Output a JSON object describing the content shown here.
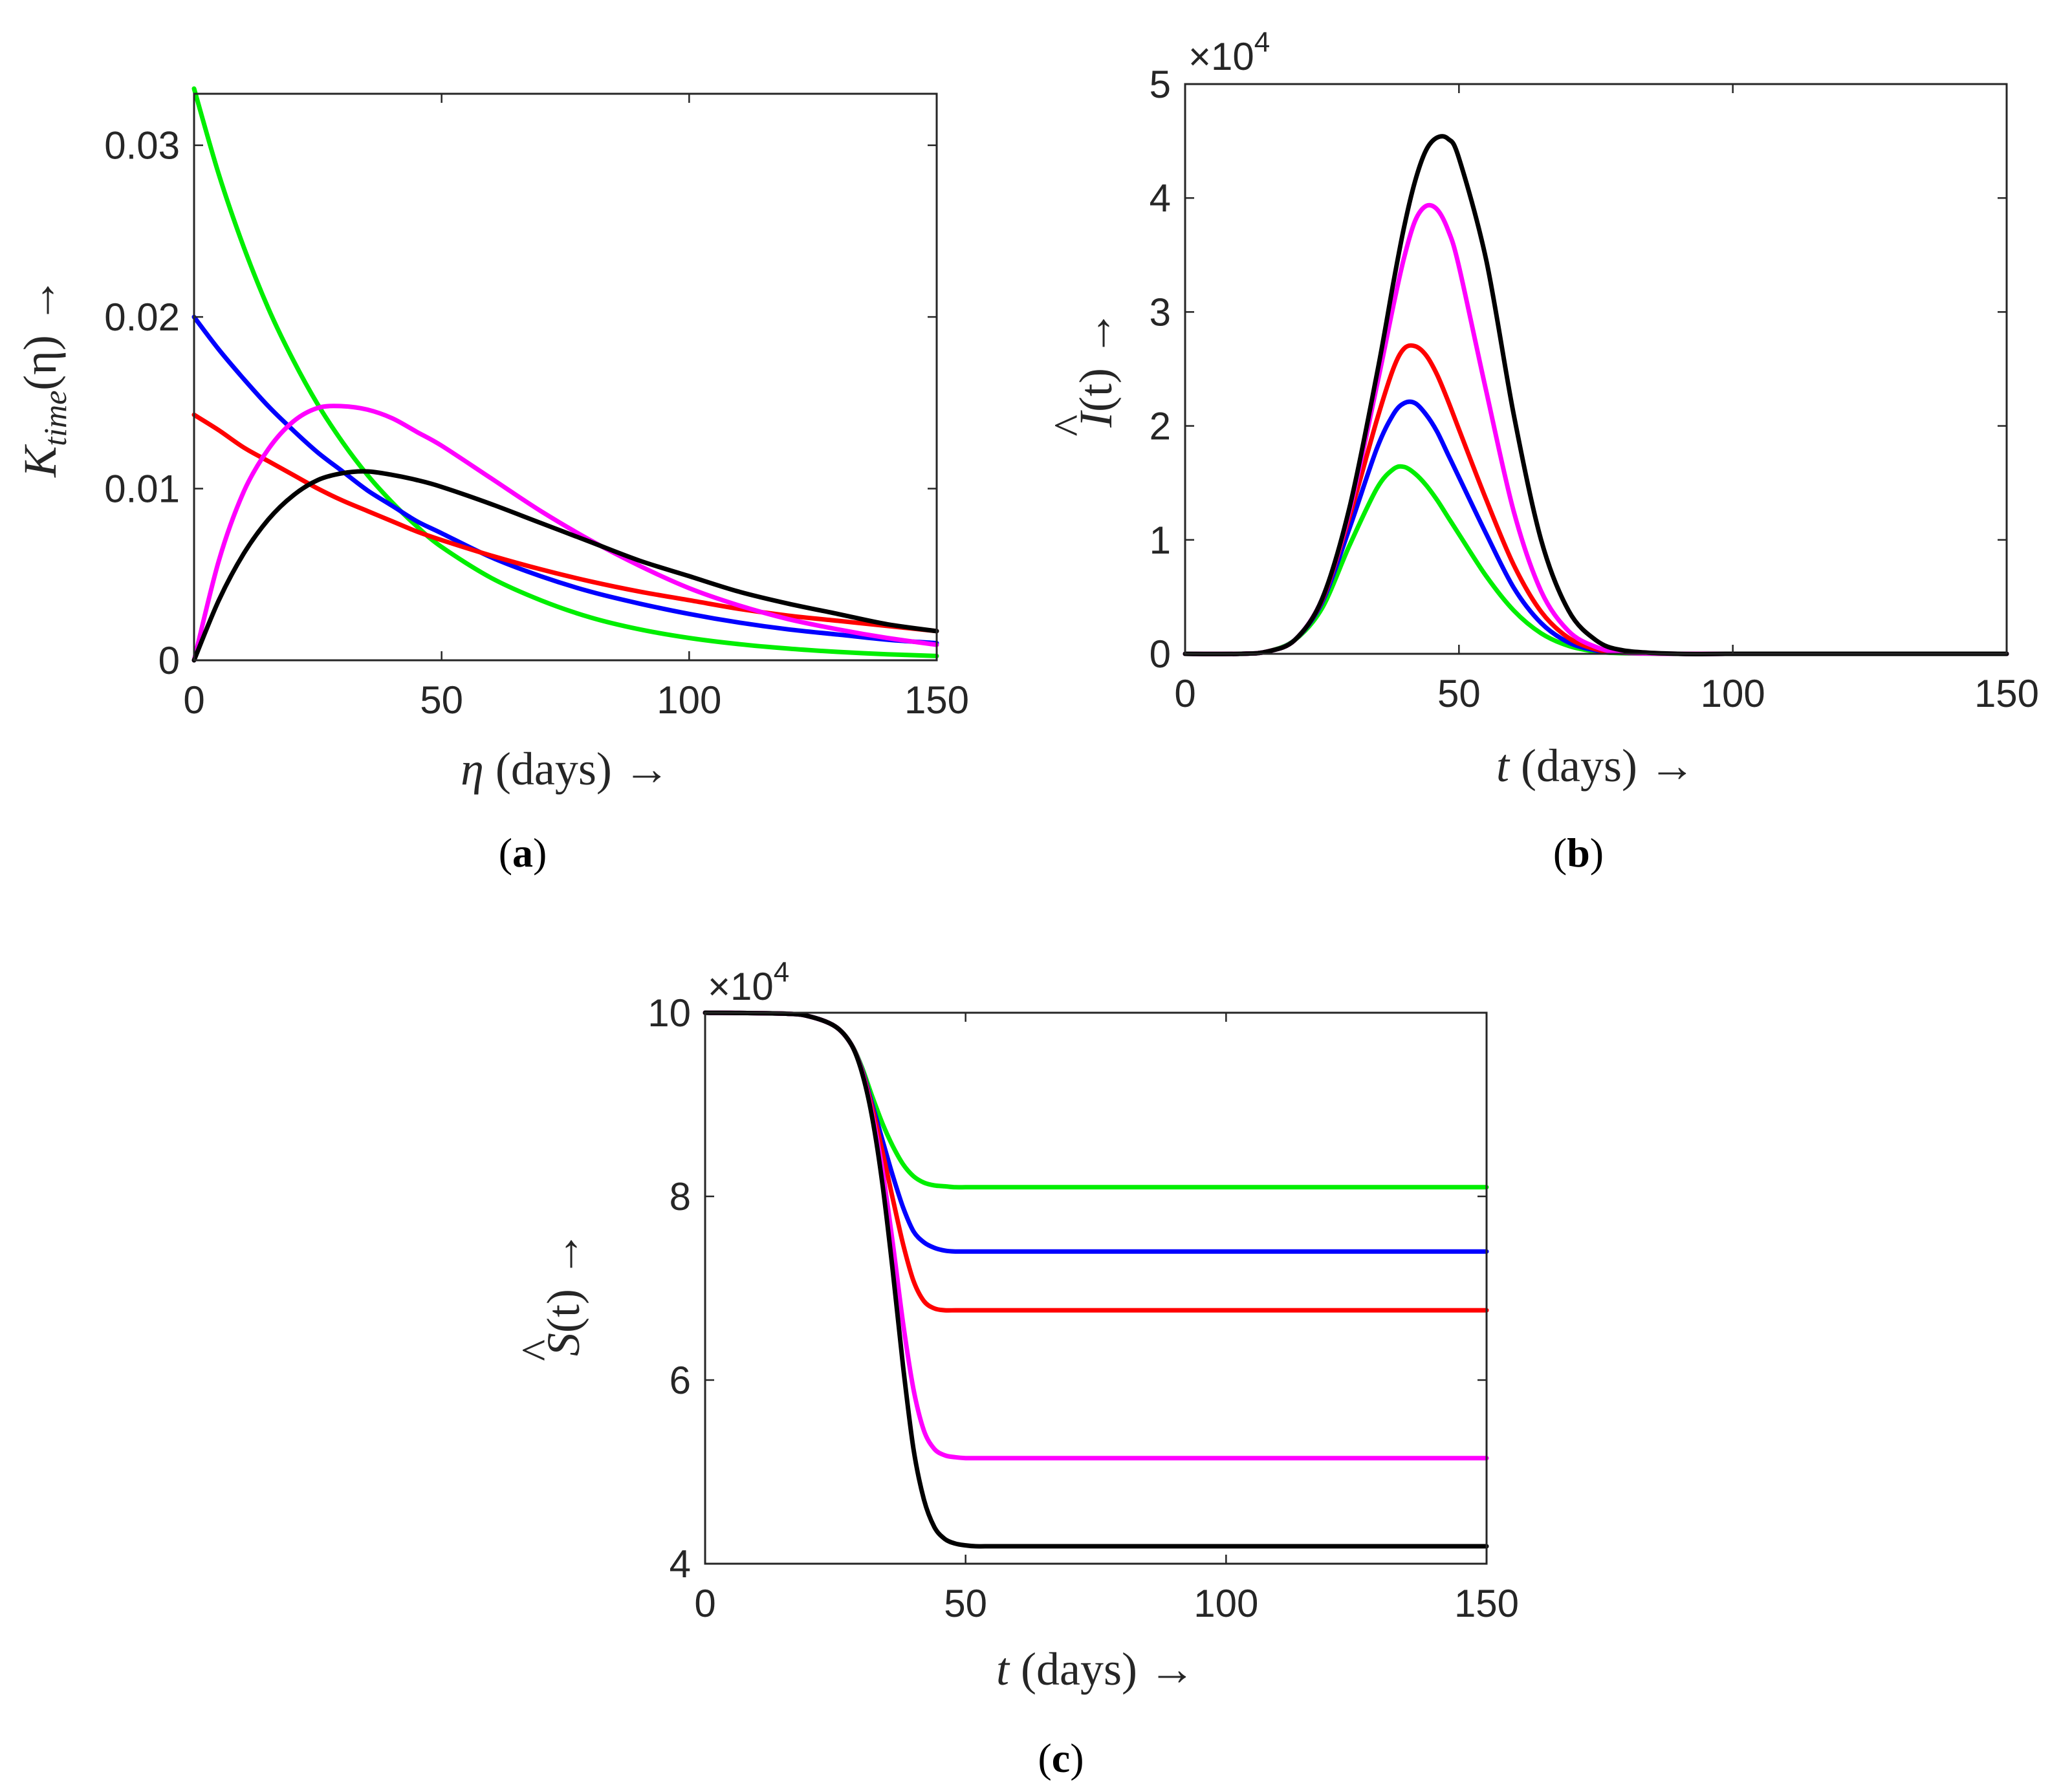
{
  "chart_data": [
    {
      "type": "line",
      "panel_label": "a",
      "xlabel": {
        "var": "η",
        "unit": "(days) →"
      },
      "ylabel": {
        "main": "K",
        "sub": "time",
        "arg": "(η) →"
      },
      "xlim": [
        0,
        150
      ],
      "ylim": [
        0,
        0.033
      ],
      "xticks": [
        0,
        50,
        100,
        150
      ],
      "xtick_labels": [
        "0",
        "50",
        "100",
        "150"
      ],
      "yticks": [
        0,
        0.01,
        0.02,
        0.03
      ],
      "ytick_labels": [
        "0",
        "0.01",
        "0.02",
        "0.03"
      ],
      "exponent_label": null,
      "x": [
        0,
        5,
        10,
        15,
        20,
        25,
        30,
        35,
        40,
        45,
        50,
        60,
        70,
        80,
        90,
        100,
        110,
        120,
        130,
        140,
        150
      ],
      "series": [
        {
          "name": "green",
          "color": "#00ee00",
          "values": [
            0.0333,
            0.0283,
            0.0241,
            0.0205,
            0.0175,
            0.0149,
            0.0127,
            0.0108,
            0.0092,
            0.0078,
            0.0066,
            0.0048,
            0.0035,
            0.0025,
            0.0018,
            0.0013,
            0.00094,
            0.00068,
            0.00049,
            0.00035,
            0.00025
          ]
        },
        {
          "name": "blue",
          "color": "#0000ff",
          "values": [
            0.02,
            0.0181,
            0.0164,
            0.0148,
            0.0134,
            0.0121,
            0.011,
            0.0099,
            0.009,
            0.0081,
            0.0074,
            0.006,
            0.0049,
            0.004,
            0.0033,
            0.0027,
            0.0022,
            0.0018,
            0.0015,
            0.0012,
            0.001
          ]
        },
        {
          "name": "red",
          "color": "#ff0000",
          "values": [
            0.0143,
            0.0134,
            0.0124,
            0.0116,
            0.0108,
            0.01,
            0.0093,
            0.0087,
            0.0081,
            0.0075,
            0.007,
            0.0061,
            0.0053,
            0.0046,
            0.004,
            0.0035,
            0.003,
            0.0026,
            0.0023,
            0.002,
            0.0017
          ]
        },
        {
          "name": "magenta",
          "color": "#ff00ff",
          "values": [
            0,
            0.0058,
            0.0098,
            0.0123,
            0.0139,
            0.0147,
            0.0148,
            0.0146,
            0.0141,
            0.0133,
            0.0125,
            0.0106,
            0.0087,
            0.007,
            0.0055,
            0.0042,
            0.0032,
            0.0024,
            0.0018,
            0.0013,
            0.0009
          ]
        },
        {
          "name": "black",
          "color": "#000000",
          "values": [
            0,
            0.0035,
            0.0062,
            0.0082,
            0.0096,
            0.0105,
            0.0109,
            0.011,
            0.0108,
            0.0105,
            0.0101,
            0.0091,
            0.008,
            0.0069,
            0.0058,
            0.0049,
            0.004,
            0.0033,
            0.0027,
            0.0021,
            0.0017
          ]
        }
      ]
    },
    {
      "type": "line",
      "panel_label": "b",
      "xlabel": {
        "var": "t",
        "unit": "(days) →"
      },
      "ylabel": {
        "main": "I",
        "hat": "^",
        "arg": "(t) →"
      },
      "xlim": [
        0,
        150
      ],
      "ylim": [
        0,
        5
      ],
      "xticks": [
        0,
        50,
        100,
        150
      ],
      "xtick_labels": [
        "0",
        "50",
        "100",
        "150"
      ],
      "yticks": [
        0,
        1,
        2,
        3,
        4,
        5
      ],
      "ytick_labels": [
        "0",
        "1",
        "2",
        "3",
        "4",
        "5"
      ],
      "exponent_label": {
        "base": "×10",
        "power": "4"
      },
      "x": [
        0,
        10,
        15,
        20,
        25,
        30,
        35,
        38,
        40,
        42,
        44,
        46,
        48,
        50,
        55,
        60,
        65,
        70,
        75,
        80,
        90,
        100,
        120,
        150
      ],
      "series": [
        {
          "name": "green",
          "color": "#00ee00",
          "values": [
            0,
            0,
            0.02,
            0.12,
            0.4,
            0.95,
            1.45,
            1.62,
            1.64,
            1.58,
            1.48,
            1.35,
            1.2,
            1.05,
            0.68,
            0.38,
            0.18,
            0.07,
            0.02,
            0.005,
            0,
            0,
            0,
            0
          ]
        },
        {
          "name": "blue",
          "color": "#0000ff",
          "values": [
            0,
            0,
            0.02,
            0.12,
            0.45,
            1.1,
            1.8,
            2.1,
            2.2,
            2.2,
            2.1,
            1.95,
            1.75,
            1.55,
            1.05,
            0.58,
            0.27,
            0.1,
            0.03,
            0.01,
            0,
            0,
            0,
            0
          ]
        },
        {
          "name": "red",
          "color": "#ff0000",
          "values": [
            0,
            0,
            0.02,
            0.12,
            0.47,
            1.2,
            2.05,
            2.5,
            2.68,
            2.7,
            2.62,
            2.45,
            2.22,
            1.97,
            1.35,
            0.78,
            0.37,
            0.14,
            0.04,
            0.01,
            0,
            0,
            0,
            0
          ]
        },
        {
          "name": "magenta",
          "color": "#ff00ff",
          "values": [
            0,
            0,
            0.02,
            0.12,
            0.48,
            1.25,
            2.35,
            3.05,
            3.48,
            3.8,
            3.93,
            3.9,
            3.72,
            3.4,
            2.3,
            1.25,
            0.55,
            0.2,
            0.06,
            0.01,
            0,
            0,
            0,
            0
          ]
        },
        {
          "name": "black",
          "color": "#000000",
          "values": [
            0,
            0,
            0.02,
            0.12,
            0.48,
            1.28,
            2.45,
            3.25,
            3.75,
            4.15,
            4.42,
            4.53,
            4.52,
            4.35,
            3.45,
            2.1,
            1.0,
            0.38,
            0.12,
            0.03,
            0,
            0,
            0,
            0
          ]
        }
      ]
    },
    {
      "type": "line",
      "panel_label": "c",
      "xlabel": {
        "var": "t",
        "unit": "(days) →"
      },
      "ylabel": {
        "main": "S",
        "hat": "^",
        "arg": "(t) →"
      },
      "xlim": [
        0,
        150
      ],
      "ylim": [
        4,
        10
      ],
      "xticks": [
        0,
        50,
        100,
        150
      ],
      "xtick_labels": [
        "0",
        "50",
        "100",
        "150"
      ],
      "yticks": [
        4,
        6,
        8,
        10
      ],
      "ytick_labels": [
        "4",
        "6",
        "8",
        "10"
      ],
      "exponent_label": {
        "base": "×10",
        "power": "4"
      },
      "x": [
        0,
        15,
        20,
        25,
        28,
        30,
        32,
        34,
        36,
        38,
        40,
        42,
        44,
        46,
        48,
        50,
        52,
        55,
        60,
        70,
        80,
        100,
        150
      ],
      "series": [
        {
          "name": "green",
          "color": "#00ee00",
          "values": [
            10.0,
            9.99,
            9.96,
            9.85,
            9.66,
            9.42,
            9.1,
            8.8,
            8.55,
            8.35,
            8.22,
            8.15,
            8.12,
            8.11,
            8.1,
            8.1,
            8.1,
            8.1,
            8.1,
            8.1,
            8.1,
            8.1,
            8.1
          ]
        },
        {
          "name": "blue",
          "color": "#0000ff",
          "values": [
            10.0,
            9.99,
            9.96,
            9.85,
            9.66,
            9.4,
            9.02,
            8.62,
            8.23,
            7.88,
            7.62,
            7.5,
            7.44,
            7.41,
            7.4,
            7.4,
            7.4,
            7.4,
            7.4,
            7.4,
            7.4,
            7.4,
            7.4
          ]
        },
        {
          "name": "red",
          "color": "#ff0000",
          "values": [
            10.0,
            9.99,
            9.96,
            9.85,
            9.66,
            9.39,
            8.98,
            8.5,
            7.98,
            7.48,
            7.08,
            6.86,
            6.78,
            6.76,
            6.76,
            6.76,
            6.76,
            6.76,
            6.76,
            6.76,
            6.76,
            6.76,
            6.76
          ]
        },
        {
          "name": "magenta",
          "color": "#ff00ff",
          "values": [
            10.0,
            9.99,
            9.96,
            9.85,
            9.66,
            9.38,
            8.92,
            8.3,
            7.5,
            6.62,
            5.9,
            5.45,
            5.25,
            5.18,
            5.16,
            5.15,
            5.15,
            5.15,
            5.15,
            5.15,
            5.15,
            5.15,
            5.15
          ]
        },
        {
          "name": "black",
          "color": "#000000",
          "values": [
            10.0,
            9.99,
            9.96,
            9.85,
            9.66,
            9.37,
            8.88,
            8.15,
            7.2,
            6.15,
            5.25,
            4.7,
            4.4,
            4.27,
            4.22,
            4.2,
            4.19,
            4.19,
            4.19,
            4.19,
            4.19,
            4.19,
            4.19
          ]
        }
      ]
    }
  ]
}
